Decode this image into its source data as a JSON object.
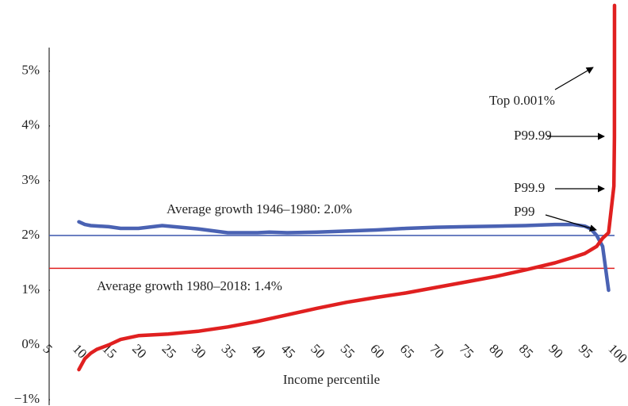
{
  "chart_data": {
    "type": "line",
    "x_label": "Income percentile",
    "xlim": [
      5,
      100
    ],
    "ylim": [
      -1.1,
      6.3
    ],
    "xticks": [
      5,
      10,
      15,
      20,
      25,
      30,
      35,
      40,
      45,
      50,
      55,
      60,
      65,
      70,
      75,
      80,
      85,
      90,
      95,
      100
    ],
    "yticks": [
      {
        "value": -1,
        "label": "−1%"
      },
      {
        "value": 0,
        "label": "0%"
      },
      {
        "value": 1,
        "label": "1%"
      },
      {
        "value": 2,
        "label": "2%"
      },
      {
        "value": 3,
        "label": "3%"
      },
      {
        "value": 4,
        "label": "4%"
      },
      {
        "value": 5,
        "label": "5%"
      }
    ],
    "series": [
      {
        "color": "#4a62b3",
        "x": [
          10,
          11,
          12,
          15,
          17,
          20,
          24,
          26,
          30,
          35,
          40,
          42,
          45,
          50,
          55,
          60,
          65,
          70,
          75,
          80,
          85,
          90,
          93,
          95,
          96,
          97,
          98,
          99
        ],
        "values": [
          2.25,
          2.2,
          2.18,
          2.16,
          2.13,
          2.13,
          2.18,
          2.16,
          2.12,
          2.05,
          2.05,
          2.06,
          2.05,
          2.06,
          2.08,
          2.1,
          2.13,
          2.15,
          2.16,
          2.17,
          2.18,
          2.2,
          2.2,
          2.17,
          2.12,
          2.0,
          1.8,
          1.0
        ]
      },
      {
        "color": "#e02020",
        "x": [
          10,
          11,
          12,
          13,
          15,
          17,
          20,
          25,
          30,
          35,
          40,
          45,
          50,
          55,
          60,
          65,
          70,
          75,
          80,
          85,
          90,
          93,
          95,
          97,
          98,
          99,
          99.9,
          99.99,
          99.999
        ],
        "values": [
          -0.45,
          -0.25,
          -0.15,
          -0.08,
          0,
          0.1,
          0.17,
          0.2,
          0.25,
          0.33,
          0.43,
          0.55,
          0.67,
          0.78,
          0.87,
          0.95,
          1.05,
          1.15,
          1.25,
          1.37,
          1.5,
          1.6,
          1.67,
          1.8,
          1.95,
          2.05,
          2.9,
          3.8,
          6.2
        ]
      }
    ],
    "reference_lines": [
      {
        "value": 2.0,
        "color": "#4a62b3",
        "label": "Average growth 1946–1980: 2.0%"
      },
      {
        "value": 1.4,
        "color": "#e02020",
        "label": "Average growth 1980–2018: 1.4%"
      }
    ],
    "annotations": [
      "Top 0.001%",
      "P99.99",
      "P99.9",
      "P99"
    ]
  }
}
